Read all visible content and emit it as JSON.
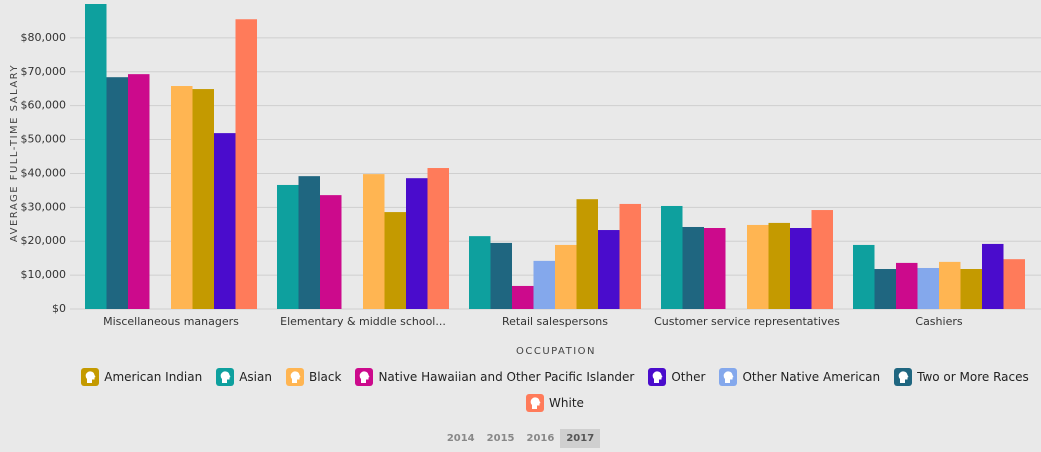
{
  "chart_data": {
    "type": "bar",
    "y_axis_title": "AVERAGE FULL-TIME SALARY",
    "x_axis_title": "OCCUPATION",
    "categories": [
      "Miscellaneous managers",
      "Elementary & middle school...",
      "Retail salespersons",
      "Customer service representatives",
      "Cashiers"
    ],
    "series": [
      {
        "name": "American Indian",
        "color": "#c49a00",
        "values": [
          64900,
          28600,
          32400,
          25400,
          11800
        ]
      },
      {
        "name": "Asian",
        "color": "#0ea09e",
        "values": [
          90000,
          36600,
          21500,
          30400,
          18900
        ]
      },
      {
        "name": "Black",
        "color": "#ffb552",
        "values": [
          65800,
          39800,
          18900,
          24800,
          13900
        ]
      },
      {
        "name": "Native Hawaiian and Other Pacific Islander",
        "color": "#cc0a8c",
        "values": [
          69300,
          33600,
          6800,
          23900,
          13600
        ]
      },
      {
        "name": "Other",
        "color": "#4a0ccc",
        "values": [
          51900,
          38600,
          23300,
          23900,
          19200
        ]
      },
      {
        "name": "Other Native American",
        "color": "#84a8ec",
        "values": [
          null,
          null,
          14200,
          null,
          12100
        ]
      },
      {
        "name": "Two or More Races",
        "color": "#1f6680",
        "values": [
          68400,
          39200,
          19500,
          24200,
          11800
        ]
      },
      {
        "name": "White",
        "color": "#ff7b5a",
        "values": [
          85500,
          41600,
          31000,
          29200,
          14700
        ]
      }
    ],
    "ylim": [
      0,
      90000
    ],
    "yticks": [
      {
        "value": 0,
        "label": "$0"
      },
      {
        "value": 10000,
        "label": "$10,000"
      },
      {
        "value": 20000,
        "label": "$20,000"
      },
      {
        "value": 30000,
        "label": "$30,000"
      },
      {
        "value": 40000,
        "label": "$40,000"
      },
      {
        "value": 50000,
        "label": "$50,000"
      },
      {
        "value": 60000,
        "label": "$60,000"
      },
      {
        "value": 70000,
        "label": "$70,000"
      },
      {
        "value": 80000,
        "label": "$80,000"
      }
    ],
    "grid": true,
    "years": [
      {
        "label": "2014",
        "selected": false
      },
      {
        "label": "2015",
        "selected": false
      },
      {
        "label": "2016",
        "selected": false
      },
      {
        "label": "2017",
        "selected": true
      }
    ]
  }
}
